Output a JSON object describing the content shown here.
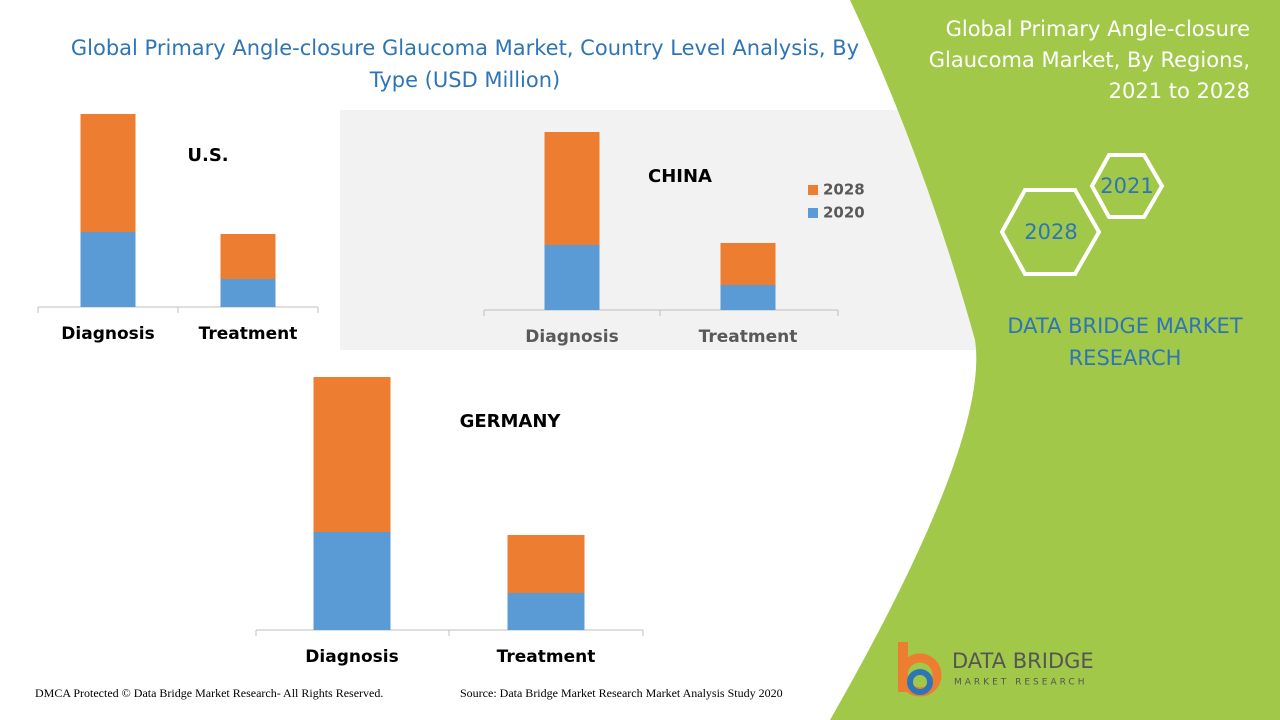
{
  "header": {
    "title": "Global Primary Angle-closure Glaucoma Market, Country Level Analysis, By Type (USD Million)"
  },
  "chart_data": [
    {
      "type": "bar",
      "stacked": true,
      "title": "U.S.",
      "categories": [
        "Diagnosis",
        "Treatment"
      ],
      "series": [
        {
          "name": "2020",
          "color": "#5b9bd5",
          "values": [
            75,
            28
          ]
        },
        {
          "name": "2028",
          "color": "#ed7d31",
          "values": [
            118,
            45
          ]
        }
      ]
    },
    {
      "type": "bar",
      "stacked": true,
      "title": "CHINA",
      "categories": [
        "Diagnosis",
        "Treatment"
      ],
      "legend": true,
      "series": [
        {
          "name": "2020",
          "color": "#5b9bd5",
          "values": [
            65,
            25
          ]
        },
        {
          "name": "2028",
          "color": "#ed7d31",
          "values": [
            113,
            42
          ]
        }
      ]
    },
    {
      "type": "bar",
      "stacked": true,
      "title": "GERMANY",
      "categories": [
        "Diagnosis",
        "Treatment"
      ],
      "series": [
        {
          "name": "2020",
          "color": "#5b9bd5",
          "values": [
            98,
            37
          ]
        },
        {
          "name": "2028",
          "color": "#ed7d31",
          "values": [
            155,
            58
          ]
        }
      ]
    }
  ],
  "panel": {
    "title": "Global Primary Angle-closure Glaucoma Market, By Regions, 2021 to 2028",
    "hexagons": [
      "2021",
      "2028"
    ],
    "brand": "DATA BRIDGE MARKET RESEARCH"
  },
  "logo": {
    "name": "DATA BRIDGE",
    "tagline": "MARKET RESEARCH"
  },
  "footer": {
    "copyright": "DMCA Protected © Data Bridge Market Research- All Rights Reserved.",
    "source": "Source: Data Bridge Market Research Market Analysis Study 2020"
  }
}
